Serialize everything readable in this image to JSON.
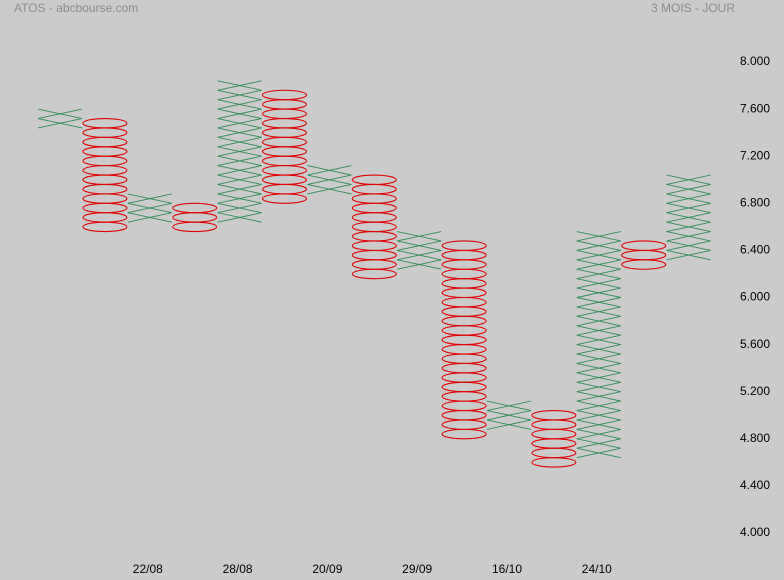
{
  "chart_data": {
    "type": "point_and_figure",
    "title": "ATOS - abcbourse.com",
    "subtitle": "3 MOIS - JOUR",
    "box_size": 0.08,
    "x_color": "#2e8b57",
    "o_color": "#e00000",
    "categories": [
      null,
      null,
      "22/08",
      null,
      "28/08",
      null,
      "20/09",
      null,
      "29/09",
      null,
      "16/10",
      null,
      "24/10",
      null,
      null
    ],
    "columns": [
      {
        "kind": "X",
        "low": 7.44,
        "high": 7.6
      },
      {
        "kind": "O",
        "low": 6.56,
        "high": 7.52
      },
      {
        "kind": "X",
        "low": 6.64,
        "high": 6.88
      },
      {
        "kind": "O",
        "low": 6.56,
        "high": 6.8
      },
      {
        "kind": "X",
        "low": 6.64,
        "high": 7.84
      },
      {
        "kind": "O",
        "low": 6.8,
        "high": 7.76
      },
      {
        "kind": "X",
        "low": 6.88,
        "high": 7.12
      },
      {
        "kind": "O",
        "low": 6.16,
        "high": 7.04
      },
      {
        "kind": "X",
        "low": 6.24,
        "high": 6.56
      },
      {
        "kind": "O",
        "low": 4.8,
        "high": 6.48
      },
      {
        "kind": "X",
        "low": 4.88,
        "high": 5.12
      },
      {
        "kind": "O",
        "low": 4.56,
        "high": 5.04
      },
      {
        "kind": "X",
        "low": 4.64,
        "high": 6.56
      },
      {
        "kind": "O",
        "low": 6.24,
        "high": 6.48
      },
      {
        "kind": "X",
        "low": 6.32,
        "high": 7.04
      }
    ],
    "ylim": [
      4.0,
      8.0
    ],
    "yticks": [
      {
        "value": 4.0,
        "label": "4.000"
      },
      {
        "value": 4.4,
        "label": "4.400"
      },
      {
        "value": 4.8,
        "label": "4.800"
      },
      {
        "value": 5.2,
        "label": "5.200"
      },
      {
        "value": 5.6,
        "label": "5.600"
      },
      {
        "value": 6.0,
        "label": "6.000"
      },
      {
        "value": 6.4,
        "label": "6.400"
      },
      {
        "value": 6.8,
        "label": "6.800"
      },
      {
        "value": 7.2,
        "label": "7.200"
      },
      {
        "value": 7.6,
        "label": "7.600"
      },
      {
        "value": 8.0,
        "label": "8.000"
      }
    ]
  }
}
